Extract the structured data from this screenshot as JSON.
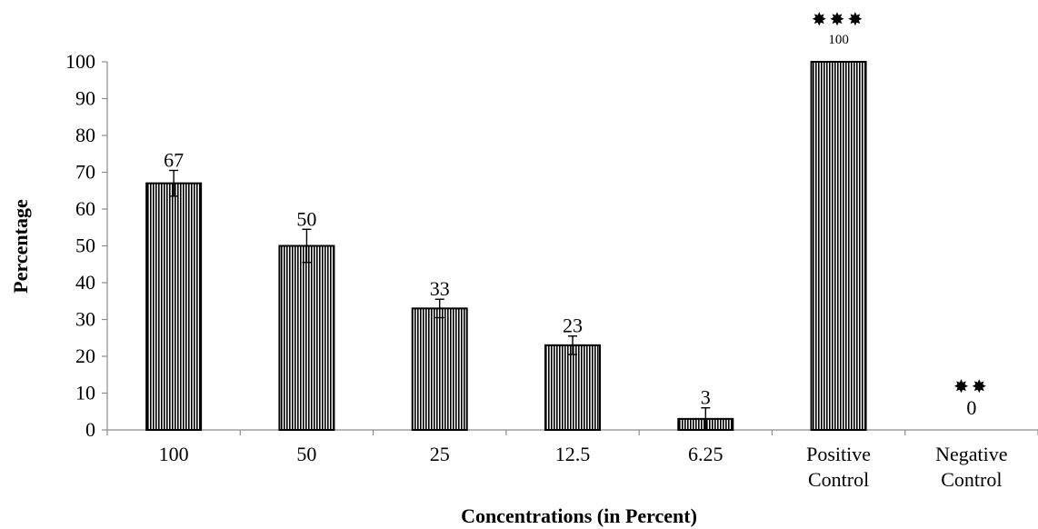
{
  "chart_data": {
    "type": "bar",
    "categories": [
      [
        "100"
      ],
      [
        "50"
      ],
      [
        "25"
      ],
      [
        "12.5"
      ],
      [
        "6.25"
      ],
      [
        "Positive",
        "Control"
      ],
      [
        "Negative",
        "Control"
      ]
    ],
    "values": [
      67,
      50,
      33,
      23,
      3,
      100,
      0
    ],
    "errors": [
      3.5,
      4.5,
      2.5,
      2.5,
      3,
      0,
      0
    ],
    "data_labels": [
      "67",
      "50",
      "33",
      "23",
      "3",
      "100",
      "0"
    ],
    "significance": [
      "",
      "",
      "",
      "",
      "",
      "✸✸✸",
      "✸✸"
    ],
    "xlabel": "Concentrations (in Percent)",
    "ylabel": "Percentage",
    "ylim": [
      0,
      100
    ],
    "yticks": [
      "0",
      "10",
      "20",
      "30",
      "40",
      "50",
      "60",
      "70",
      "80",
      "90",
      "100"
    ],
    "bar_pattern": "vertical-stripes",
    "bar_colors": {
      "fill": "#ffffff",
      "stripe": "#000000",
      "outline": "#000000"
    },
    "grid": false
  }
}
